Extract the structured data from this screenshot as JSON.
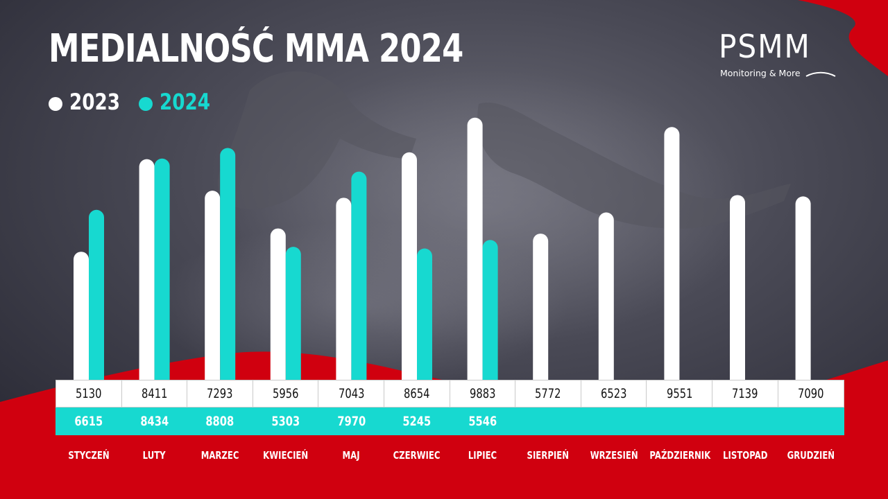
{
  "title": "MEDIALNOŚĆ MMA 2024",
  "legend": [
    {
      "label": "2023",
      "color": "#ffffff"
    },
    {
      "label": "2024",
      "color": "#17d9d0"
    }
  ],
  "logo": {
    "name": "PSMM",
    "tagline": "Monitoring & More"
  },
  "colors": {
    "background": "#3a3a45",
    "series_2023": "#ffffff",
    "series_2024": "#17d9d0",
    "accent_red": "#d0000f"
  },
  "chart_data": {
    "type": "bar",
    "categories": [
      "STYCZEŃ",
      "LUTY",
      "MARZEC",
      "KWIECIEŃ",
      "MAJ",
      "CZERWIEC",
      "LIPIEC",
      "SIERPIEŃ",
      "WRZESIEŃ",
      "PAŹDZIERNIK",
      "LISTOPAD",
      "GRUDZIEŃ"
    ],
    "series": [
      {
        "name": "2023",
        "values": [
          5130,
          8411,
          7293,
          5956,
          7043,
          8654,
          9883,
          5772,
          6523,
          9551,
          7139,
          7090
        ]
      },
      {
        "name": "2024",
        "values": [
          6615,
          8434,
          8808,
          5303,
          7970,
          5245,
          5546,
          null,
          null,
          null,
          null,
          null
        ]
      }
    ],
    "value_labels": {
      "2023": [
        "5130",
        "8411",
        "7293",
        "5956",
        "7043",
        "8654",
        "9883",
        "5772",
        "6523",
        "9551",
        "7139",
        "7090"
      ],
      "2024": [
        "6615",
        "8434",
        "8808",
        "5303",
        "7970",
        "5245",
        "5546",
        "",
        "",
        "",
        "",
        ""
      ]
    },
    "title": "MEDIALNOŚĆ MMA 2024",
    "xlabel": "",
    "ylabel": "",
    "grid": false,
    "legend_position": "top-left"
  }
}
